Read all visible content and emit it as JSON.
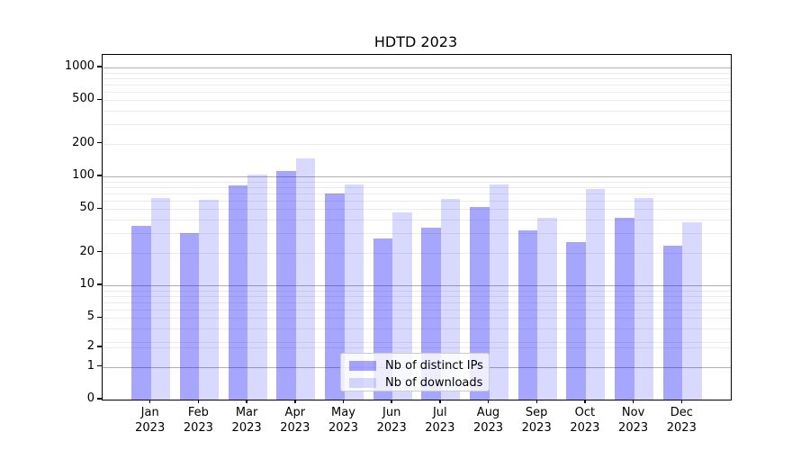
{
  "figure": {
    "kind": "matplotlib-style static chart image"
  },
  "chart_data": {
    "type": "bar",
    "title": "HDTD 2023",
    "x_tick_months": [
      "Jan",
      "Feb",
      "Mar",
      "Apr",
      "May",
      "Jun",
      "Jul",
      "Aug",
      "Sep",
      "Oct",
      "Nov",
      "Dec"
    ],
    "x_tick_year": "2023",
    "series": [
      {
        "name": "Nb of distinct IPs",
        "color": "rgba(0,0,255,0.35)",
        "values": [
          35,
          30,
          82,
          112,
          70,
          27,
          34,
          52,
          32,
          25,
          42,
          23
        ]
      },
      {
        "name": "Nb of downloads",
        "color": "rgba(0,0,255,0.15)",
        "values": [
          63,
          61,
          104,
          146,
          85,
          47,
          62,
          85,
          42,
          77,
          63,
          38
        ]
      }
    ],
    "y_scale": "symlog (log above ~2, compressed linear region down to 0)",
    "y_ticks": [
      1000,
      500,
      200,
      100,
      50,
      20,
      10,
      5,
      2,
      1,
      0
    ],
    "ylim": [
      0,
      1000
    ],
    "xlabel": "",
    "ylabel": "",
    "grid": "both (gray major lines at powers of 10, faint minor lines at 2-9 per decade)",
    "legend_position": "inside axes, lower center",
    "colors": {
      "major_grid": "#b0b0b0",
      "minor_grid": "#ebebeb",
      "spine": "#000000",
      "background": "#ffffff"
    }
  }
}
